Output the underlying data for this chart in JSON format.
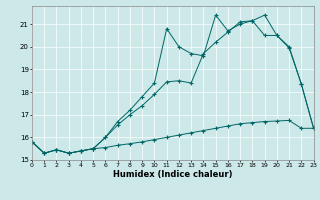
{
  "xlabel": "Humidex (Indice chaleur)",
  "bg_color": "#cce8e8",
  "line_color": "#006666",
  "xlim": [
    0,
    23
  ],
  "ylim": [
    15,
    21.8
  ],
  "yticks": [
    15,
    16,
    17,
    18,
    19,
    20,
    21
  ],
  "xticks": [
    0,
    1,
    2,
    3,
    4,
    5,
    6,
    7,
    8,
    9,
    10,
    11,
    12,
    13,
    14,
    15,
    16,
    17,
    18,
    19,
    20,
    21,
    22,
    23
  ],
  "s1_x": [
    0,
    1,
    2,
    3,
    4,
    5,
    6,
    7,
    8,
    9,
    10,
    11,
    12,
    13,
    14,
    15,
    16,
    17,
    18,
    19,
    20,
    21,
    22,
    23
  ],
  "s1_y": [
    15.8,
    15.3,
    15.45,
    15.3,
    15.4,
    15.5,
    15.55,
    15.65,
    15.72,
    15.8,
    15.9,
    16.0,
    16.1,
    16.2,
    16.3,
    16.4,
    16.5,
    16.6,
    16.65,
    16.7,
    16.72,
    16.75,
    16.4,
    16.4
  ],
  "s2_x": [
    0,
    1,
    2,
    3,
    4,
    5,
    6,
    7,
    8,
    9,
    10,
    11,
    12,
    13,
    14,
    15,
    16,
    17,
    18,
    19,
    20,
    21,
    22,
    23
  ],
  "s2_y": [
    15.8,
    15.3,
    15.45,
    15.3,
    15.4,
    15.5,
    16.0,
    16.55,
    17.0,
    17.4,
    17.9,
    18.45,
    18.5,
    18.4,
    19.7,
    20.2,
    20.65,
    21.1,
    21.15,
    21.4,
    20.5,
    19.95,
    18.35,
    16.4
  ],
  "s3_x": [
    0,
    1,
    2,
    3,
    4,
    5,
    6,
    7,
    8,
    9,
    10,
    11,
    12,
    13,
    14,
    15,
    16,
    17,
    18,
    19,
    20,
    21,
    22,
    23
  ],
  "s3_y": [
    15.8,
    15.3,
    15.45,
    15.3,
    15.4,
    15.5,
    16.0,
    16.7,
    17.2,
    17.8,
    18.4,
    20.8,
    20.0,
    19.7,
    19.6,
    21.4,
    20.7,
    21.0,
    21.15,
    20.5,
    20.5,
    20.0,
    18.35,
    16.4
  ]
}
